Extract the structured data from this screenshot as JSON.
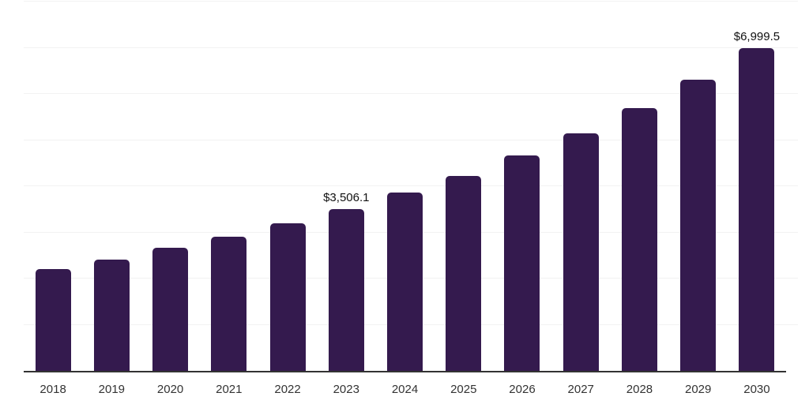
{
  "chart_data": {
    "type": "bar",
    "title": "",
    "xlabel": "",
    "ylabel": "",
    "categories": [
      "2018",
      "2019",
      "2020",
      "2021",
      "2022",
      "2023",
      "2024",
      "2025",
      "2026",
      "2027",
      "2028",
      "2029",
      "2030"
    ],
    "values": [
      2205,
      2410,
      2665,
      2905,
      3195,
      3506.1,
      3855,
      4230,
      4670,
      5140,
      5685,
      6305,
      6999.5
    ],
    "data_labels": {
      "2023": "$3,506.1",
      "2030": "$6,999.5"
    },
    "ylim": [
      0,
      8000
    ],
    "gridline_step": 1000,
    "grid": "horizontal",
    "legend_position": "none",
    "y_axis_labels_visible": false,
    "colors": {
      "bar": "#341A4E",
      "axis": "#333333",
      "gridline": "#f2f2f2",
      "tick_label": "#333333",
      "data_label": "#111111",
      "background": "#ffffff"
    }
  }
}
